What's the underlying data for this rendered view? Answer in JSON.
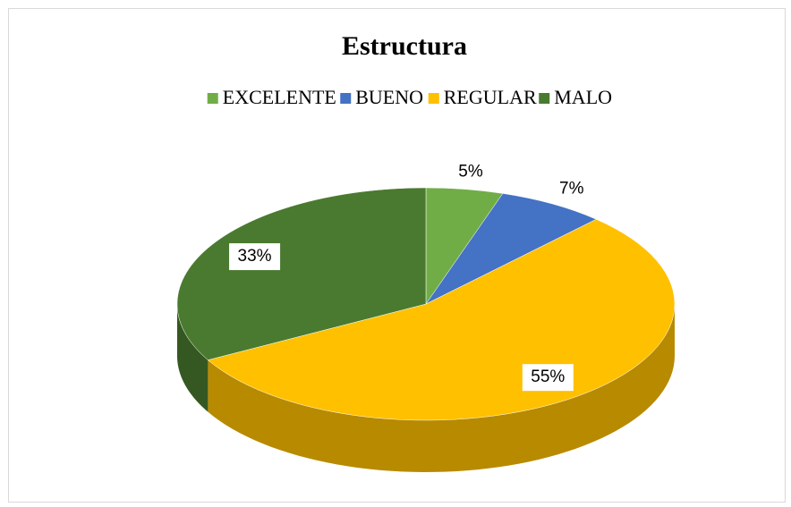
{
  "chart_data": {
    "type": "pie",
    "title": "Estructura",
    "categories": [
      "EXCELENTE",
      "BUENO",
      "REGULAR",
      "MALO"
    ],
    "values": [
      5,
      7,
      55,
      33
    ],
    "value_labels": [
      "5%",
      "7%",
      "55%",
      "33%"
    ],
    "colors": [
      "#70ad47",
      "#4472c4",
      "#ffc000",
      "#4a7a2f"
    ],
    "legend": "top"
  }
}
